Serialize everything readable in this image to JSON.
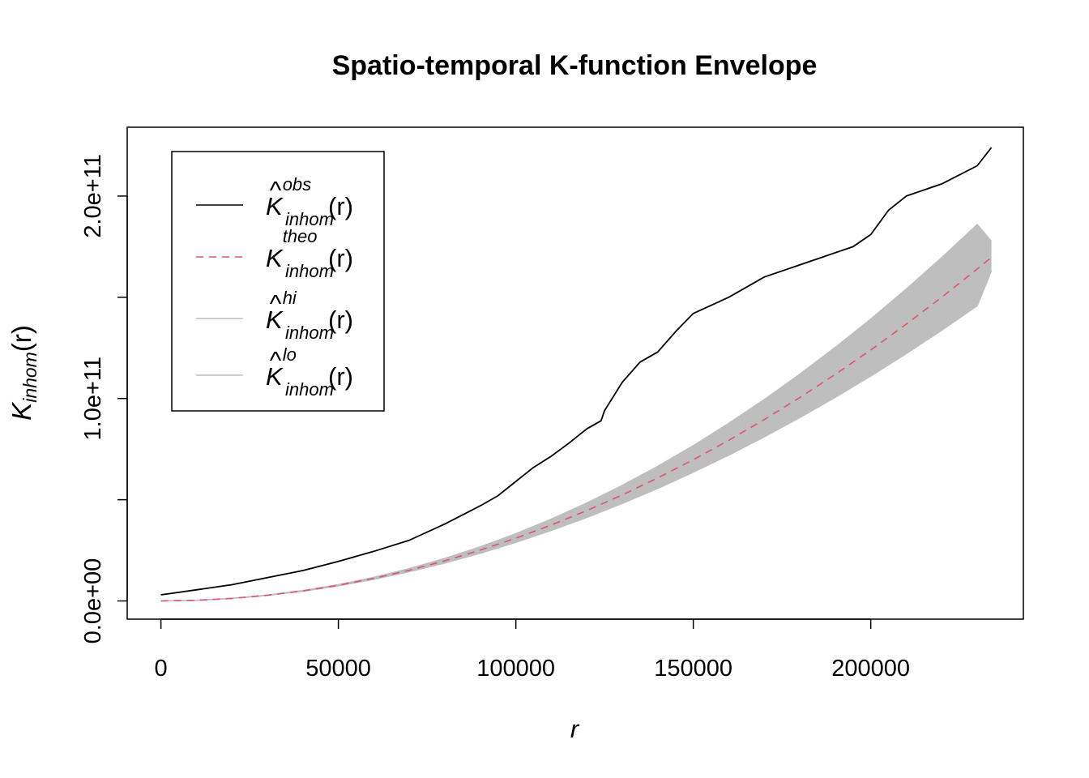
{
  "chart_data": {
    "type": "line",
    "title": "Spatio-temporal K-function Envelope",
    "xlabel": "r",
    "ylabel": {
      "main": "K",
      "sub": "inhom",
      "arg": "(r)"
    },
    "xlim": [
      -9500,
      243000
    ],
    "ylim": [
      -9000000000,
      234000000000
    ],
    "x_ticks": [
      0,
      50000,
      100000,
      150000,
      200000
    ],
    "x_tick_labels": [
      "0",
      "50000",
      "100000",
      "150000",
      "200000"
    ],
    "y_ticks": [
      0,
      50000000000,
      100000000000,
      150000000000,
      200000000000
    ],
    "y_tick_labels": [
      "0.0e+00",
      "",
      "1.0e+11",
      "",
      "2.0e+11"
    ],
    "grid": false,
    "legend_position": "top-left",
    "legend": [
      {
        "id": "obs",
        "hat": true,
        "main": "K",
        "sup": "obs",
        "sub": "inhom",
        "arg": "(r)",
        "color": "#000000",
        "dash": ""
      },
      {
        "id": "theo",
        "hat": false,
        "main": "K",
        "sup": "theo",
        "sub": "inhom",
        "arg": "(r)",
        "color": "#DF536B",
        "dash": "9,7"
      },
      {
        "id": "hi",
        "hat": true,
        "main": "K",
        "sup": "hi",
        "sub": "inhom",
        "arg": "(r)",
        "color": "#BEBEBE",
        "dash": ""
      },
      {
        "id": "lo",
        "hat": true,
        "main": "K",
        "sup": "lo",
        "sub": "inhom",
        "arg": "(r)",
        "color": "#BEBEBE",
        "dash": ""
      }
    ],
    "series": [
      {
        "name": "obs",
        "color": "#000000",
        "x": [
          0,
          10000,
          20000,
          30000,
          40000,
          50000,
          60000,
          70000,
          80000,
          90000,
          95000,
          100000,
          105000,
          110000,
          115000,
          120000,
          124000,
          125000,
          130000,
          135000,
          140000,
          145000,
          150000,
          155000,
          160000,
          170000,
          180000,
          190000,
          195000,
          200000,
          205000,
          210000,
          220000,
          230000,
          234000
        ],
        "y": [
          3000000000,
          5500000000,
          8000000000,
          11500000000,
          15000000000,
          19500000000,
          24500000000,
          30000000000,
          38000000000,
          47000000000,
          52000000000,
          59000000000,
          66000000000,
          71500000000,
          78000000000,
          85000000000,
          89000000000,
          94000000000,
          108000000000,
          118000000000,
          123000000000,
          133000000000,
          142000000000,
          146000000000,
          150000000000,
          160000000000,
          166000000000,
          172000000000,
          175000000000,
          181000000000,
          193000000000,
          200000000000,
          206000000000,
          215000000000,
          224000000000
        ]
      },
      {
        "name": "theo",
        "color": "#DF536B",
        "x": [
          0,
          10000,
          20000,
          30000,
          40000,
          50000,
          60000,
          70000,
          80000,
          90000,
          100000,
          110000,
          120000,
          130000,
          140000,
          150000,
          160000,
          170000,
          180000,
          190000,
          200000,
          210000,
          220000,
          230000,
          234000
        ],
        "y": [
          0,
          310000000,
          1240000000,
          2790000000,
          4960000000,
          7750000000,
          11160000000,
          15190000000,
          19840000000,
          25110000000,
          31000000000,
          37510000000,
          44640000000,
          52390000000,
          60760000000,
          69750000000,
          79360000000,
          89590000000,
          100440000000,
          111910000000,
          124000000000,
          136710000000,
          150040000000,
          163990000000,
          169740000000
        ]
      },
      {
        "name": "hi",
        "color": "#BEBEBE",
        "x": [
          0,
          10000,
          20000,
          30000,
          40000,
          50000,
          60000,
          70000,
          80000,
          90000,
          100000,
          110000,
          120000,
          130000,
          140000,
          150000,
          160000,
          170000,
          180000,
          190000,
          200000,
          210000,
          220000,
          230000,
          234000
        ],
        "y": [
          0,
          320000000,
          1280000000,
          2880000000,
          5140000000,
          8060000000,
          11670000000,
          15980000000,
          21000000000,
          26730000000,
          33200000000,
          40400000000,
          48350000000,
          57050000000,
          66510000000,
          76730000000,
          87710000000,
          99450000000,
          111960000000,
          125230000000,
          139260000000,
          154060000000,
          169620000000,
          185940000000,
          177600000000
        ]
      },
      {
        "name": "lo",
        "color": "#BEBEBE",
        "x": [
          0,
          10000,
          20000,
          30000,
          40000,
          50000,
          60000,
          70000,
          80000,
          90000,
          100000,
          110000,
          120000,
          130000,
          140000,
          150000,
          160000,
          170000,
          180000,
          190000,
          200000,
          210000,
          220000,
          230000,
          234000
        ],
        "y": [
          0,
          300000000,
          1210000000,
          2710000000,
          4800000000,
          7460000000,
          10680000000,
          14450000000,
          18750000000,
          23580000000,
          28940000000,
          34830000000,
          41240000000,
          48170000000,
          55620000000,
          63580000000,
          72060000000,
          81050000000,
          90560000000,
          100590000000,
          111130000000,
          122190000000,
          133770000000,
          145860000000,
          163200000000
        ]
      }
    ]
  }
}
